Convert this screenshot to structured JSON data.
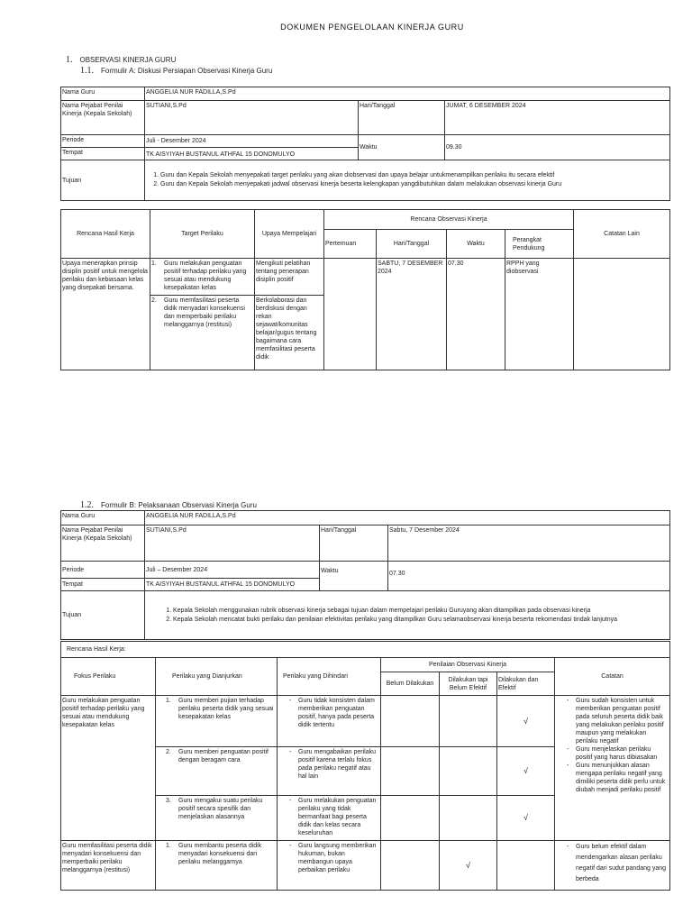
{
  "doc_title": "DOKUMEN PENGELOLAAN KINERJA GURU",
  "section1": {
    "number": "1.",
    "title": "OBSERVASI KINERJA GURU"
  },
  "form_a": {
    "number": "1.1.",
    "title": "Formulir A: Diskusi Persiapan Observasi Kinerja Guru",
    "info": {
      "nama_guru_label": "Nama Guru",
      "nama_guru": "ANGGELIA NUR FADILLA,S.Pd",
      "pejabat_label": "Nama Pejabat Penilai Kinerja (Kepala Sekolah)",
      "pejabat": "SUTIANI,S.Pd",
      "hari_label": "Hari/Tanggal",
      "hari": "JUMAT, 6 DESEMBER 2024",
      "periode_label": "Periode",
      "periode": "Juli - Desember 2024",
      "waktu_label": "Waktu",
      "waktu": "09.30",
      "tempat_label": "Tempat",
      "tempat": "TK AISYIYAH BUSTANUL ATHFAL 15 DONOMULYO",
      "tujuan_label": "Tujuan",
      "tujuan": [
        "Guru dan Kepala Sekolah menyepakati target perilaku yang akan diobservasi dan upaya belajar untukmenampilkan perilaku itu secara efektif",
        "Guru dan Kepala Sekolah menyepakati jadwal observasi kinerja beserta kelengkapan yangdibutuhkan dalam melakukan observasi kinerja Guru"
      ]
    },
    "plan": {
      "headers": {
        "rhk": "Rencana Hasil Kerja",
        "target": "Target Perilaku",
        "upaya": "Upaya Mempelajari",
        "rencana": "Rencana Observasi Kinerja",
        "pertemuan": "Pertemuan",
        "hari": "Hari/Tanggal",
        "waktu": "Waktu",
        "perangkat": "Perangkat Pendukung",
        "catatan": "Catatan Lain"
      },
      "rhk": "Upaya menerapkan prinsip disiplin positif untuk mengelola perilaku dan kebiasaan kelas yang disepakati bersama.",
      "targets": [
        {
          "no": "1.",
          "text": "Guru melakukan penguatan positif terhadap perilaku yang sesuai atau mendukung kesepakatan kelas",
          "upaya": "Mengikuti pelatihan tentang penerapan disiplin positif"
        },
        {
          "no": "2.",
          "text": "Guru memfasilitasi peserta didik menyadari konsekuensi dan memperbaiki perilaku melanggarnya (restitusi)",
          "upaya": "Berkolaborasi dan berdiskusi dengan rekan sejawat/komunitas belajar/gugus tentang bagaimana cara memfasilitasi peserta didik"
        }
      ],
      "pertemuan": "",
      "hari": "SABTU, 7 DESEMBER 2024",
      "waktu": "07.30",
      "perangkat": "RPPH yang diobservasi",
      "catatan": ""
    }
  },
  "form_b": {
    "number": "1.2.",
    "title": "Formulir B: Pelaksanaan Observasi Kinerja Guru",
    "info": {
      "nama_guru_label": "Nama Guru",
      "nama_guru": "ANGGELIA NUR FADILLA,S.Pd",
      "pejabat_label": "Nama Pejabat Penilai Kinerja (Kepala Sekolah)",
      "pejabat": "SUTIANI,S.Pd",
      "hari_label": "Hari/Tanggal",
      "hari": "Sabtu, 7 Desember 2024",
      "periode_label": "Periode",
      "periode": "Juli – Desember 2024",
      "waktu_label": "Waktu",
      "waktu": "07.30",
      "tempat_label": "Tempat",
      "tempat": "TK AISYIYAH BUSTANUL ATHFAL 15 DONOMULYO",
      "tujuan_label": "Tujuan",
      "tujuan": [
        "Kepala Sekolah menggunakan rubrik observasi kinerja sebagai tujuan dalam mempelajari perilaku Guruyang akan ditampilkan pada observasi kinerja",
        "Kepala Sekolah mencatat bukti perilaku dan penilaian efektivitas perilaku yang ditampilkan Guru selamaobservasi kinerja beserta rekomendasi tindak lanjutnya"
      ]
    },
    "eval": {
      "rhk_label": "Rencana Hasil Kerja:",
      "headers": {
        "fokus": "Fokus Perilaku",
        "dianjurkan": "Perilaku yang Dianjurkan",
        "dihindari": "Perilaku yang Dihindari",
        "penilaian": "Penilaian Observasi Kinerja",
        "belum": "Belum Dilakukan",
        "tapi": "Dilakukan tapi Belum Efektif",
        "efektif": "Dilakukan dan Efektif",
        "catatan": "Catatan"
      },
      "check_mark": "√",
      "fokus": [
        {
          "text": "Guru melakukan penguatan positif terhadap perilaku yang sesuai atau mendukung kesepakatan kelas",
          "rows": [
            {
              "no": "1.",
              "dianjurkan": "Guru memberi pujian terhadap perilaku peserta didik yang sesuai kesepakatan kelas",
              "dihindari": "Guru tidak konsisten dalam memberikan penguatan positif, hanya pada peserta didik tertentu",
              "rating": "Dilakukan dan Efektif"
            },
            {
              "no": "2.",
              "dianjurkan": "Guru memberi penguatan positif dengan beragam cara",
              "dihindari": "Guru mengabaikan perilaku positif karena terlalu fokus pada perilaku negatif atau hal lain",
              "rating": "Dilakukan dan Efektif"
            },
            {
              "no": "3.",
              "dianjurkan": "Guru mengakui suatu perilaku positif secara spesifik dan menjelaskan alasannya",
              "dihindari": "Guru melakukan penguatan perilaku yang tidak bermanfaat bagi peserta didik dan kelas secara keseluruhan",
              "rating": "Dilakukan dan Efektif"
            }
          ],
          "catatan": [
            "Guru sudah konsisten untuk memberikan penguatan positif pada seluruh peserta didik baik yang melakukan perilaku positif maupun yang melakukan perilaku negatif",
            "Guru menjelaskan perilaku positif yang harus dibiasakan",
            "Guru menunjukkan alasan mengapa perilaku negatif yang dimiliki peserta didik perlu untuk diubah menjadi perilaku positif"
          ]
        },
        {
          "text": "Guru memfasilitasi peserta didik menyadari konsekuensi dan memperbaiki perilaku melanggarnya (restitusi)",
          "rows": [
            {
              "no": "1.",
              "dianjurkan": "Guru membantu peserta didik menyadari konsekuensi dari perilaku melanggarnya",
              "dihindari": "Guru langsung memberikan hukuman, bukan membangun upaya perbaikan perilaku",
              "rating": "Dilakukan tapi Belum Efektif"
            }
          ],
          "catatan": [
            "Guru belum efektif dalam mendengarkan alasan perilaku negatif dari sudut pandang yang berbeda"
          ]
        }
      ]
    }
  }
}
